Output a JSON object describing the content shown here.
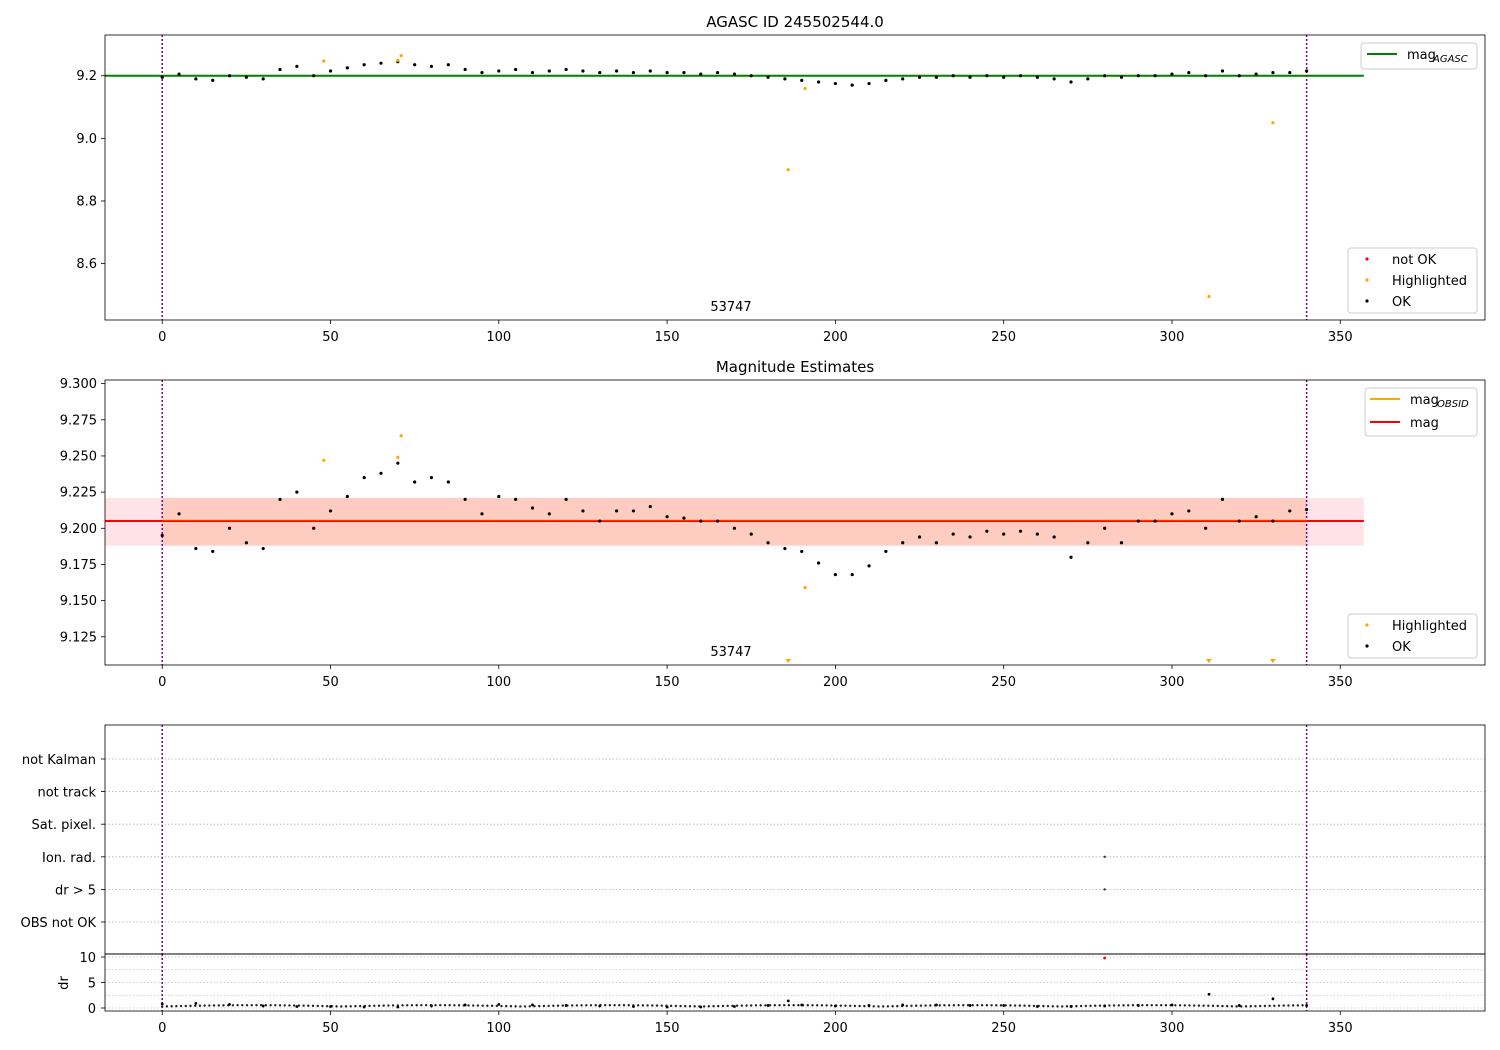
{
  "figure": {
    "title": "AGASC ID 245502544.0",
    "obsid_label": "53747"
  },
  "chart_data": [
    {
      "type": "scatter",
      "title": "AGASC ID 245502544.0",
      "xlabel": "",
      "ylabel": "",
      "xlim": [
        -17,
        393
      ],
      "ylim": [
        8.42,
        9.33
      ],
      "xticks": [
        0,
        50,
        100,
        150,
        200,
        250,
        300,
        350
      ],
      "yticks": [
        8.6,
        8.8,
        9.0,
        9.2
      ],
      "grid": false,
      "vlines": [
        0,
        340
      ],
      "obsid_text": "53747",
      "hline": {
        "name": "mag_AGASC",
        "y": 9.2,
        "color": "#008000",
        "xrange": [
          -17,
          357
        ]
      },
      "legend_top": {
        "placement": "top-right",
        "entries": [
          {
            "label": "mag",
            "sub": "AGASC",
            "color": "#008000",
            "kind": "line"
          }
        ]
      },
      "legend_bottom": {
        "placement": "lower-right",
        "entries": [
          {
            "label": "not OK",
            "color": "#ff0000",
            "kind": "dot"
          },
          {
            "label": "Highlighted",
            "color": "#ffa500",
            "kind": "dot"
          },
          {
            "label": "OK",
            "color": "#000000",
            "kind": "dot"
          }
        ]
      },
      "series": [
        {
          "name": "OK",
          "color": "#000000",
          "x": [
            0,
            5,
            10,
            15,
            20,
            25,
            30,
            35,
            40,
            45,
            50,
            55,
            60,
            65,
            70,
            75,
            80,
            85,
            90,
            95,
            100,
            105,
            110,
            115,
            120,
            125,
            130,
            135,
            140,
            145,
            150,
            155,
            160,
            165,
            170,
            175,
            180,
            185,
            190,
            195,
            200,
            205,
            210,
            215,
            220,
            225,
            230,
            235,
            240,
            245,
            250,
            255,
            260,
            265,
            270,
            275,
            280,
            285,
            290,
            295,
            300,
            305,
            310,
            315,
            320,
            325,
            330,
            335,
            340
          ],
          "y": [
            9.195,
            9.205,
            9.19,
            9.185,
            9.2,
            9.195,
            9.19,
            9.22,
            9.23,
            9.2,
            9.215,
            9.225,
            9.235,
            9.24,
            9.245,
            9.235,
            9.23,
            9.235,
            9.22,
            9.21,
            9.215,
            9.22,
            9.21,
            9.215,
            9.22,
            9.215,
            9.21,
            9.215,
            9.21,
            9.215,
            9.21,
            9.21,
            9.205,
            9.21,
            9.205,
            9.2,
            9.195,
            9.19,
            9.185,
            9.18,
            9.175,
            9.17,
            9.175,
            9.185,
            9.19,
            9.195,
            9.195,
            9.2,
            9.195,
            9.2,
            9.195,
            9.2,
            9.195,
            9.19,
            9.18,
            9.19,
            9.2,
            9.195,
            9.2,
            9.2,
            9.205,
            9.21,
            9.2,
            9.215,
            9.2,
            9.205,
            9.21,
            9.21,
            9.215
          ]
        },
        {
          "name": "Highlighted",
          "color": "#ffa500",
          "x": [
            48,
            70,
            71,
            186,
            191,
            311,
            330
          ],
          "y": [
            9.247,
            9.249,
            9.264,
            8.9,
            9.159,
            8.495,
            9.05
          ]
        }
      ]
    },
    {
      "type": "scatter",
      "title": "Magnitude Estimates",
      "xlabel": "",
      "ylabel": "",
      "xlim": [
        -17,
        393
      ],
      "ylim": [
        9.1055,
        9.3025
      ],
      "xticks": [
        0,
        50,
        100,
        150,
        200,
        250,
        300,
        350
      ],
      "yticks": [
        9.125,
        9.15,
        9.175,
        9.2,
        9.225,
        9.25,
        9.275,
        9.3
      ],
      "grid": false,
      "vlines": [
        0,
        340
      ],
      "obsid_text": "53747",
      "band_outer": {
        "y": [
          9.188,
          9.221
        ],
        "xrange": [
          -17,
          357
        ],
        "color": "#ffc0cb"
      },
      "band_inner": {
        "y": [
          9.188,
          9.221
        ],
        "xrange": [
          0,
          340
        ],
        "color": "#ffa07a"
      },
      "hline_mag": {
        "name": "mag",
        "y": 9.205,
        "color": "#ff0000",
        "xrange": [
          -17,
          357
        ]
      },
      "hline_obsid": {
        "name": "mag_OBSID",
        "y": 9.205,
        "color": "#ffa500",
        "xrange": [
          0,
          340
        ]
      },
      "legend_top": {
        "placement": "top-right",
        "entries": [
          {
            "label": "mag",
            "sub": "OBSID",
            "color": "#ffa500",
            "kind": "line"
          },
          {
            "label": "mag",
            "sub": "",
            "color": "#ff0000",
            "kind": "line"
          }
        ]
      },
      "legend_bottom": {
        "placement": "lower-right",
        "entries": [
          {
            "label": "Highlighted",
            "color": "#ffa500",
            "kind": "dot"
          },
          {
            "label": "OK",
            "color": "#000000",
            "kind": "dot"
          }
        ]
      },
      "series": [
        {
          "name": "OK",
          "color": "#000000",
          "x": [
            0,
            5,
            10,
            15,
            20,
            25,
            30,
            35,
            40,
            45,
            50,
            55,
            60,
            65,
            70,
            75,
            80,
            85,
            90,
            95,
            100,
            105,
            110,
            115,
            120,
            125,
            130,
            135,
            140,
            145,
            150,
            155,
            160,
            165,
            170,
            175,
            180,
            185,
            190,
            195,
            200,
            205,
            210,
            215,
            220,
            225,
            230,
            235,
            240,
            245,
            250,
            255,
            260,
            265,
            270,
            275,
            280,
            285,
            290,
            295,
            300,
            305,
            310,
            315,
            320,
            325,
            330,
            335,
            340
          ],
          "y": [
            9.195,
            9.21,
            9.186,
            9.184,
            9.2,
            9.19,
            9.186,
            9.22,
            9.225,
            9.2,
            9.212,
            9.222,
            9.235,
            9.238,
            9.245,
            9.232,
            9.235,
            9.232,
            9.22,
            9.21,
            9.222,
            9.22,
            9.214,
            9.21,
            9.22,
            9.212,
            9.205,
            9.212,
            9.212,
            9.215,
            9.208,
            9.207,
            9.205,
            9.205,
            9.2,
            9.196,
            9.19,
            9.186,
            9.184,
            9.176,
            9.168,
            9.168,
            9.174,
            9.184,
            9.19,
            9.194,
            9.19,
            9.196,
            9.194,
            9.198,
            9.196,
            9.198,
            9.196,
            9.194,
            9.18,
            9.19,
            9.2,
            9.19,
            9.205,
            9.205,
            9.21,
            9.212,
            9.2,
            9.22,
            9.205,
            9.208,
            9.205,
            9.212,
            9.213
          ]
        },
        {
          "name": "Highlighted",
          "color": "#ffa500",
          "x": [
            48,
            70,
            71,
            191
          ],
          "y": [
            9.247,
            9.249,
            9.264,
            9.159
          ]
        }
      ],
      "below_range_markers": {
        "color": "#ffa500",
        "x": [
          186,
          311,
          330
        ]
      }
    },
    {
      "type": "scatter",
      "title": "",
      "xlabel": "",
      "ylabel": "",
      "xlim": [
        -17,
        393
      ],
      "xticks": [
        0,
        50,
        100,
        150,
        200,
        250,
        300,
        350
      ],
      "categories": [
        "not Kalman",
        "not track",
        "Sat. pixel.",
        "Ion. rad.",
        "dr > 5",
        "OBS not OK"
      ],
      "grid": true,
      "vlines": [
        0,
        340
      ],
      "flags": [
        {
          "category": "Ion. rad.",
          "x": 280
        },
        {
          "category": "dr > 5",
          "x": 280
        }
      ]
    },
    {
      "type": "scatter",
      "title": "",
      "xlabel": "",
      "ylabel": "dr",
      "xlim": [
        -17,
        393
      ],
      "ylim": [
        -0.5,
        10.5
      ],
      "xticks": [
        0,
        50,
        100,
        150,
        200,
        250,
        300,
        350
      ],
      "yticks": [
        0,
        5,
        10
      ],
      "grid": true,
      "vlines": [
        0,
        340
      ],
      "series": [
        {
          "name": "OK",
          "color": "#000000",
          "x": [
            0,
            10,
            20,
            30,
            40,
            50,
            60,
            70,
            80,
            90,
            100,
            110,
            120,
            130,
            140,
            150,
            160,
            170,
            180,
            186,
            190,
            200,
            210,
            220,
            230,
            240,
            250,
            260,
            270,
            280,
            290,
            300,
            311,
            320,
            330,
            340
          ],
          "y": [
            0.8,
            0.9,
            0.7,
            0.4,
            0.3,
            0.3,
            0.2,
            0.2,
            0.4,
            0.6,
            0.7,
            0.6,
            0.5,
            0.4,
            0.3,
            0.2,
            0.2,
            0.3,
            0.5,
            1.4,
            0.6,
            0.4,
            0.5,
            0.6,
            0.6,
            0.5,
            0.5,
            0.3,
            0.3,
            0.4,
            0.5,
            0.6,
            2.7,
            0.5,
            1.8,
            0.5
          ]
        },
        {
          "name": "not OK",
          "color": "#ff0000",
          "x": [
            280
          ],
          "y": [
            9.8
          ]
        }
      ]
    }
  ]
}
